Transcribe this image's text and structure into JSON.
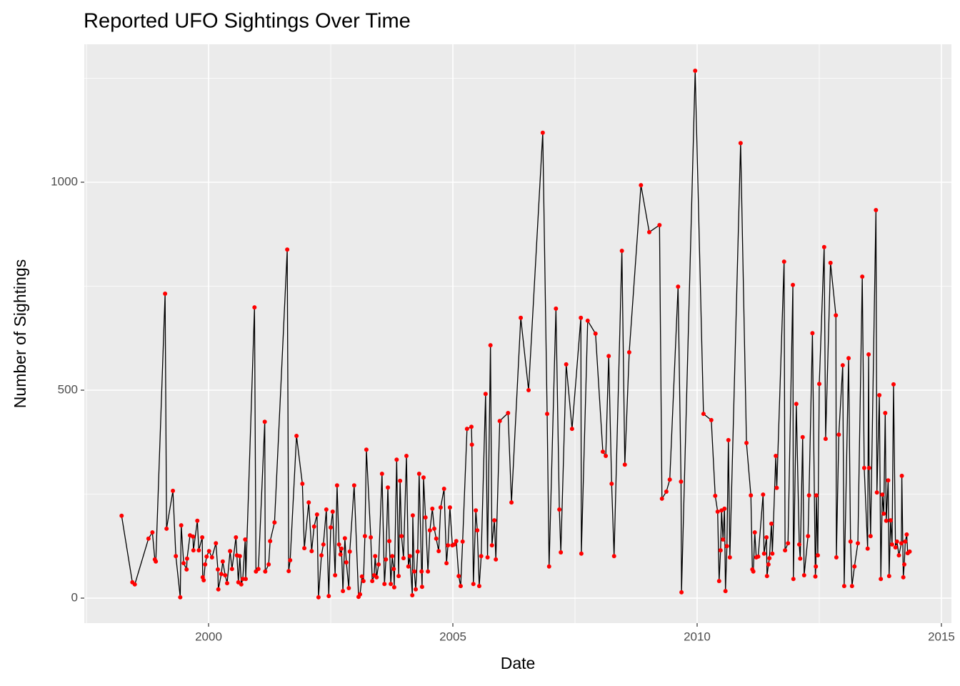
{
  "chart_data": {
    "type": "line",
    "title": "Reported UFO Sightings Over Time",
    "x_label": "Date",
    "y_label": "Number of Sightings",
    "x": [
      1998.22,
      1998.44,
      1998.49,
      1998.77,
      1998.85,
      1998.9,
      1998.92,
      1999.11,
      1999.14,
      1999.27,
      1999.33,
      1999.42,
      1999.44,
      1999.49,
      1999.55,
      1999.56,
      1999.62,
      1999.68,
      1999.69,
      1999.77,
      1999.8,
      1999.87,
      1999.88,
      1999.9,
      1999.93,
      1999.96,
      2000.01,
      2000.07,
      2000.15,
      2000.19,
      2000.2,
      2000.26,
      2000.29,
      2000.34,
      2000.38,
      2000.44,
      2000.48,
      2000.56,
      2000.58,
      2000.61,
      2000.64,
      2000.67,
      2000.7,
      2000.75,
      2000.76,
      2000.94,
      2000.97,
      2001.02,
      2001.15,
      2001.16,
      2001.23,
      2001.26,
      2001.35,
      2001.61,
      2001.64,
      2001.67,
      2001.8,
      2001.92,
      2001.96,
      2002.05,
      2002.11,
      2002.16,
      2002.22,
      2002.25,
      2002.31,
      2002.35,
      2002.41,
      2002.46,
      2002.5,
      2002.54,
      2002.59,
      2002.63,
      2002.67,
      2002.7,
      2002.72,
      2002.75,
      2002.79,
      2002.82,
      2002.87,
      2002.89,
      2002.98,
      2003.07,
      2003.1,
      2003.14,
      2003.17,
      2003.2,
      2003.23,
      2003.32,
      2003.35,
      2003.39,
      2003.41,
      2003.44,
      2003.48,
      2003.55,
      2003.6,
      2003.63,
      2003.67,
      2003.7,
      2003.73,
      2003.76,
      2003.79,
      2003.8,
      2003.85,
      2003.89,
      2003.92,
      2003.95,
      2003.99,
      2004.05,
      2004.09,
      2004.12,
      2004.17,
      2004.18,
      2004.21,
      2004.24,
      2004.28,
      2004.31,
      2004.36,
      2004.37,
      2004.4,
      2004.44,
      2004.49,
      2004.53,
      2004.58,
      2004.62,
      2004.66,
      2004.71,
      2004.75,
      2004.82,
      2004.87,
      2004.9,
      2004.94,
      2004.99,
      2005.03,
      2005.07,
      2005.12,
      2005.16,
      2005.2,
      2005.29,
      2005.38,
      2005.39,
      2005.42,
      2005.47,
      2005.5,
      2005.54,
      2005.58,
      2005.67,
      2005.71,
      2005.77,
      2005.8,
      2005.85,
      2005.88,
      2005.96,
      2006.13,
      2006.2,
      2006.39,
      2006.55,
      2006.84,
      2006.93,
      2006.97,
      2007.11,
      2007.18,
      2007.21,
      2007.32,
      2007.44,
      2007.62,
      2007.63,
      2007.76,
      2007.92,
      2008.07,
      2008.13,
      2008.19,
      2008.25,
      2008.3,
      2008.46,
      2008.52,
      2008.61,
      2008.85,
      2009.02,
      2009.23,
      2009.28,
      2009.37,
      2009.44,
      2009.61,
      2009.67,
      2009.68,
      2009.96,
      2010.13,
      2010.29,
      2010.37,
      2010.42,
      2010.45,
      2010.48,
      2010.5,
      2010.53,
      2010.56,
      2010.58,
      2010.61,
      2010.64,
      2010.67,
      2010.89,
      2011.01,
      2011.1,
      2011.13,
      2011.15,
      2011.18,
      2011.21,
      2011.25,
      2011.35,
      2011.37,
      2011.42,
      2011.43,
      2011.46,
      2011.48,
      2011.52,
      2011.54,
      2011.61,
      2011.63,
      2011.78,
      2011.8,
      2011.86,
      2011.96,
      2011.97,
      2012.03,
      2012.09,
      2012.11,
      2012.16,
      2012.19,
      2012.27,
      2012.29,
      2012.36,
      2012.42,
      2012.43,
      2012.44,
      2012.47,
      2012.5,
      2012.6,
      2012.63,
      2012.73,
      2012.84,
      2012.85,
      2012.9,
      2012.98,
      2013.01,
      2013.1,
      2013.14,
      2013.17,
      2013.22,
      2013.29,
      2013.38,
      2013.42,
      2013.49,
      2013.51,
      2013.52,
      2013.55,
      2013.66,
      2013.68,
      2013.73,
      2013.76,
      2013.79,
      2013.82,
      2013.85,
      2013.87,
      2013.91,
      2013.93,
      2013.96,
      2013.99,
      2014.02,
      2014.06,
      2014.09,
      2014.13,
      2014.18,
      2014.19,
      2014.22,
      2014.24,
      2014.26,
      2014.29,
      2014.31,
      2014.35
    ],
    "values": [
      198,
      38,
      33,
      143,
      158,
      93,
      88,
      732,
      167,
      258,
      101,
      2,
      175,
      84,
      69,
      95,
      151,
      148,
      115,
      186,
      115,
      146,
      50,
      43,
      81,
      100,
      113,
      98,
      132,
      69,
      21,
      58,
      88,
      55,
      36,
      113,
      70,
      146,
      103,
      38,
      101,
      33,
      46,
      141,
      46,
      699,
      64,
      70,
      424,
      64,
      81,
      137,
      182,
      838,
      65,
      91,
      390,
      275,
      120,
      230,
      113,
      172,
      201,
      2,
      103,
      129,
      213,
      5,
      170,
      208,
      55,
      271,
      129,
      105,
      119,
      17,
      144,
      86,
      24,
      112,
      271,
      3,
      9,
      52,
      41,
      149,
      357,
      146,
      41,
      55,
      101,
      50,
      81,
      299,
      34,
      93,
      266,
      137,
      34,
      101,
      70,
      26,
      333,
      53,
      282,
      149,
      96,
      342,
      76,
      101,
      7,
      199,
      64,
      21,
      112,
      299,
      64,
      27,
      290,
      194,
      64,
      163,
      215,
      167,
      143,
      113,
      218,
      263,
      84,
      127,
      218,
      127,
      129,
      137,
      53,
      29,
      136,
      407,
      412,
      369,
      34,
      211,
      163,
      29,
      101,
      491,
      98,
      608,
      127,
      187,
      93,
      426,
      445,
      230,
      674,
      500,
      1119,
      443,
      76,
      696,
      213,
      110,
      562,
      407,
      674,
      107,
      667,
      636,
      352,
      342,
      582,
      275,
      101,
      835,
      321,
      591,
      993,
      880,
      897,
      239,
      256,
      285,
      749,
      280,
      14,
      1268,
      443,
      428,
      246,
      208,
      41,
      115,
      211,
      141,
      215,
      17,
      125,
      380,
      98,
      1094,
      373,
      247,
      69,
      64,
      158,
      98,
      100,
      249,
      107,
      146,
      53,
      81,
      96,
      179,
      107,
      342,
      265,
      809,
      115,
      132,
      753,
      46,
      467,
      129,
      95,
      387,
      55,
      149,
      247,
      637,
      52,
      76,
      247,
      103,
      515,
      844,
      383,
      806,
      680,
      98,
      393,
      560,
      29,
      577,
      136,
      29,
      76,
      132,
      773,
      313,
      119,
      586,
      313,
      149,
      933,
      254,
      488,
      46,
      249,
      203,
      445,
      186,
      283,
      53,
      187,
      129,
      514,
      122,
      136,
      103,
      132,
      294,
      50,
      81,
      136,
      153,
      108,
      112
    ],
    "line_color": "#000000",
    "point_color": "#ff0000",
    "xlim": [
      1997.456,
      2015.205
    ],
    "ylim": [
      -60.1,
      1331.6
    ],
    "xticks": [
      2000,
      2005,
      2010,
      2015
    ],
    "yticks": [
      0,
      500,
      1000
    ],
    "grid": true
  }
}
